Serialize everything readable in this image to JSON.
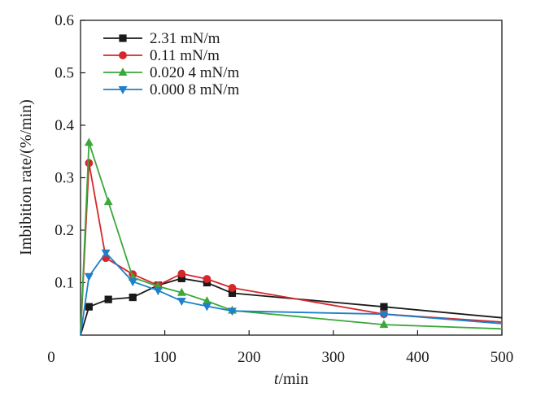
{
  "chart_data": {
    "type": "line",
    "xlabel_italic": "t",
    "xlabel_unit": "/min",
    "ylabel": "Imbibition rate/(%/min)",
    "xlim": [
      0,
      500
    ],
    "ylim": [
      0,
      0.6
    ],
    "x_origin_label": "0",
    "xticks": [
      100,
      200,
      300,
      400,
      500
    ],
    "yticks": [
      0.1,
      0.2,
      0.3,
      0.4,
      0.5,
      0.6
    ],
    "grid": false,
    "legend_position": "top-left",
    "series": [
      {
        "name": "2.31 mN/m",
        "color": "#1a1a1a",
        "marker": "square",
        "points": [
          [
            0,
            0
          ],
          [
            10,
            0.054
          ],
          [
            33,
            0.068
          ],
          [
            62,
            0.072
          ],
          [
            92,
            0.095
          ],
          [
            120,
            0.108
          ],
          [
            150,
            0.1
          ],
          [
            180,
            0.08
          ],
          [
            360,
            0.054
          ],
          [
            500,
            0.033
          ]
        ]
      },
      {
        "name": "0.11 mN/m",
        "color": "#d6262b",
        "marker": "circle",
        "points": [
          [
            0,
            0
          ],
          [
            10,
            0.328
          ],
          [
            30,
            0.147
          ],
          [
            62,
            0.116
          ],
          [
            92,
            0.095
          ],
          [
            120,
            0.117
          ],
          [
            150,
            0.107
          ],
          [
            180,
            0.09
          ],
          [
            360,
            0.04
          ],
          [
            500,
            0.025
          ]
        ]
      },
      {
        "name": "0.020 4 mN/m",
        "color": "#3aa83a",
        "marker": "triangle-up",
        "points": [
          [
            0,
            0
          ],
          [
            10,
            0.367
          ],
          [
            33,
            0.254
          ],
          [
            62,
            0.11
          ],
          [
            92,
            0.093
          ],
          [
            120,
            0.081
          ],
          [
            150,
            0.065
          ],
          [
            180,
            0.047
          ],
          [
            360,
            0.02
          ],
          [
            500,
            0.012
          ]
        ]
      },
      {
        "name": "0.000 8 mN/m",
        "color": "#1f7fc9",
        "marker": "triangle-down",
        "points": [
          [
            0,
            0
          ],
          [
            10,
            0.112
          ],
          [
            30,
            0.157
          ],
          [
            62,
            0.102
          ],
          [
            92,
            0.085
          ],
          [
            120,
            0.065
          ],
          [
            150,
            0.055
          ],
          [
            180,
            0.046
          ],
          [
            360,
            0.04
          ],
          [
            500,
            0.022
          ]
        ]
      }
    ]
  }
}
